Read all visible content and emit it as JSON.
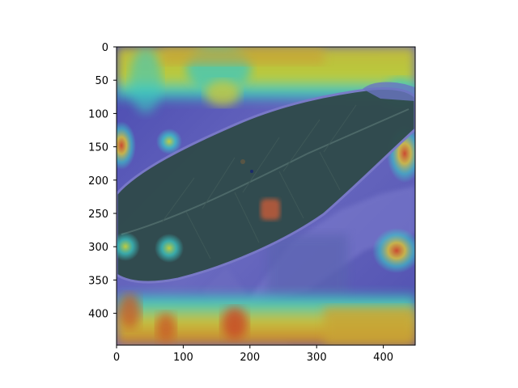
{
  "figure": {
    "description_type": "heatmap-overlay-on-leaf-photo",
    "x_axis": {
      "range": [
        0,
        448
      ],
      "ticks": [
        "0",
        "100",
        "200",
        "300",
        "400"
      ],
      "tick_values": [
        0,
        100,
        200,
        300,
        400
      ]
    },
    "y_axis": {
      "range": [
        0,
        448
      ],
      "inverted": true,
      "ticks": [
        "0",
        "50",
        "100",
        "150",
        "200",
        "250",
        "300",
        "350",
        "400"
      ],
      "tick_values": [
        0,
        50,
        100,
        150,
        200,
        250,
        300,
        350,
        400
      ]
    },
    "colors": {
      "background": "#ffffff",
      "leaf": "#2f4a4a",
      "leaf_vein": "#4c6868",
      "cold": "#3a3aa8",
      "cool": "#5a64c8",
      "mid": "#3cc8c8",
      "warm": "#c8d23c",
      "hot": "#d05a28",
      "axis": "#000000"
    }
  }
}
